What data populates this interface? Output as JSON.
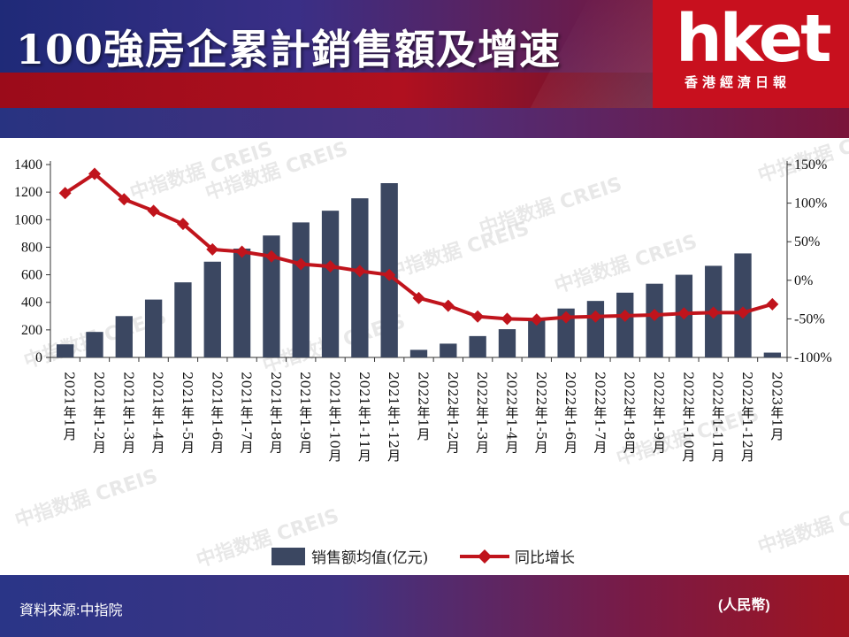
{
  "header": {
    "title": "100強房企累計銷售額及增速",
    "logo_word": "hket",
    "logo_sub": "香港經濟日報"
  },
  "watermark": {
    "text": "中指数据 CREIS"
  },
  "footer": {
    "source": "資料來源:中指院",
    "unit": "(人民幣)"
  },
  "colors": {
    "bar": "#3b4761",
    "line": "#c0141c",
    "brand_red": "#c8101e"
  },
  "chart_data": {
    "type": "bar",
    "categories": [
      "2021年1月",
      "2021年1-2月",
      "2021年1-3月",
      "2021年1-4月",
      "2021年1-5月",
      "2021年1-6月",
      "2021年1-7月",
      "2021年1-8月",
      "2021年1-9月",
      "2021年1-10月",
      "2021年1-11月",
      "2021年1-12月",
      "2022年1月",
      "2022年1-2月",
      "2022年1-3月",
      "2022年1-4月",
      "2022年1-5月",
      "2022年1-6月",
      "2022年1-7月",
      "2022年1-8月",
      "2022年1-9月",
      "2022年1-10月",
      "2022年1-11月",
      "2022年1-12月",
      "2023年1月"
    ],
    "series": [
      {
        "name": "销售额均值(亿元)",
        "type": "bar",
        "axis": "left",
        "values": [
          95,
          185,
          300,
          420,
          545,
          695,
          790,
          885,
          980,
          1065,
          1155,
          1265,
          55,
          100,
          155,
          205,
          270,
          355,
          410,
          470,
          535,
          600,
          665,
          755,
          35
        ]
      },
      {
        "name": "同比增长",
        "type": "line",
        "axis": "right",
        "unit": "%",
        "values": [
          113,
          138,
          105,
          90,
          73,
          40,
          37,
          31,
          21,
          18,
          12,
          7,
          -23,
          -33,
          -47,
          -50,
          -51,
          -48,
          -47,
          -46,
          -45,
          -43,
          -42,
          -42,
          -31
        ]
      }
    ],
    "y_left": {
      "min": 0,
      "max": 1400,
      "ticks": [
        0,
        200,
        400,
        600,
        800,
        1000,
        1200,
        1400
      ]
    },
    "y_right": {
      "min": -100,
      "max": 150,
      "ticks": [
        150,
        100,
        50,
        0,
        -50,
        -100
      ],
      "tick_labels": [
        "150%",
        "100%",
        "50%",
        "0%",
        "-50%",
        "-100%"
      ]
    },
    "legend_position": "bottom-center"
  }
}
